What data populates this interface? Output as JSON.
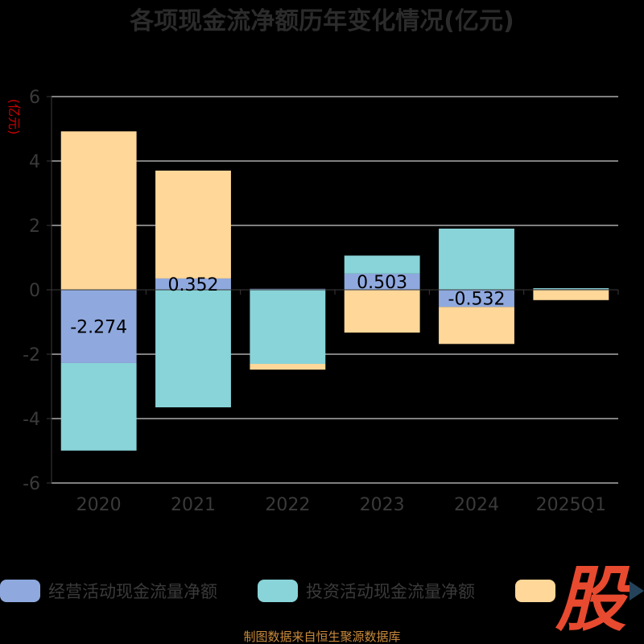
{
  "colors": {
    "operating": "#8fa9df",
    "investing": "#88d4d8",
    "financing": "#ffd799",
    "grid": "#ffffff",
    "axis": "#3a3a3a",
    "logo": "#e84a2f",
    "arrow": "#24435a"
  },
  "chart_data": {
    "type": "bar",
    "stacked": true,
    "title": "各项现金流净额历年变化情况(亿元)",
    "ylabel": "(亿元)",
    "categories": [
      "2020",
      "2021",
      "2022",
      "2023",
      "2024",
      "2025Q1"
    ],
    "ylim": [
      -6,
      6
    ],
    "yticks": [
      6,
      4,
      2,
      0,
      -2,
      -4,
      -6
    ],
    "ytick_labels": [
      "6",
      "4",
      "2",
      "0",
      "-2",
      "-4",
      "-6"
    ],
    "grid": true,
    "legend_position": "bottom",
    "series": [
      {
        "name": "经营活动现金流量净额",
        "key": "operating",
        "values": [
          -2.274,
          0.352,
          0.03,
          0.503,
          -0.532,
          0.02
        ],
        "labels": [
          "-2.274",
          "0.352",
          "",
          "0.503",
          "-0.532",
          ""
        ]
      },
      {
        "name": "投资活动现金流量净额",
        "key": "investing",
        "values": [
          -2.72,
          -3.65,
          -2.3,
          0.56,
          1.9,
          0.03
        ],
        "labels": [
          "",
          "",
          "",
          "",
          "",
          ""
        ]
      },
      {
        "name": "",
        "key": "financing",
        "values": [
          4.92,
          3.35,
          -0.18,
          -1.33,
          -1.15,
          -0.32
        ],
        "labels": [
          "",
          "",
          "",
          "",
          "",
          ""
        ]
      }
    ]
  },
  "footer": "制图数据来自恒生聚源数据库",
  "logo": "股"
}
